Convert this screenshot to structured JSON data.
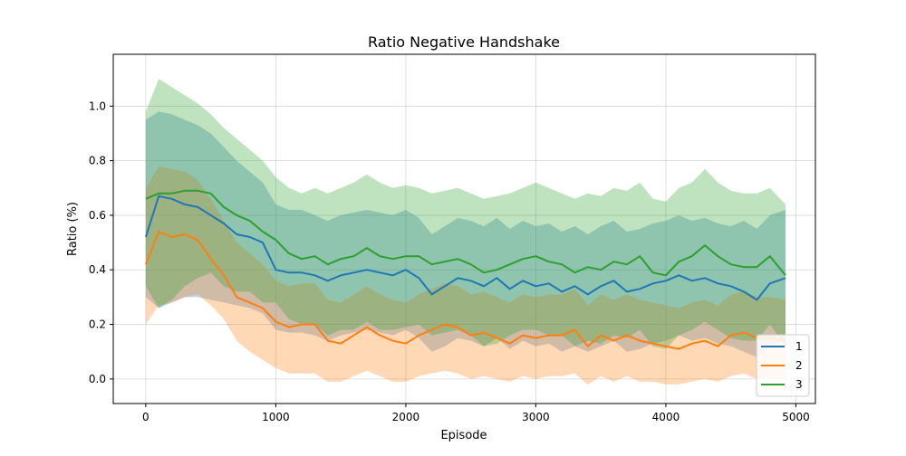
{
  "chart_data": {
    "type": "line",
    "title": "Ratio Negative Handshake",
    "xlabel": "Episode",
    "ylabel": "Ratio (%)",
    "xlim": [
      -250,
      5150
    ],
    "ylim": [
      -0.09,
      1.19
    ],
    "xticks": [
      0,
      1000,
      2000,
      3000,
      4000,
      5000
    ],
    "yticks": [
      0.0,
      0.2,
      0.4,
      0.6,
      0.8,
      1.0
    ],
    "xtick_labels": [
      "0",
      "1000",
      "2000",
      "3000",
      "4000",
      "5000"
    ],
    "ytick_labels": [
      "0.0",
      "0.2",
      "0.4",
      "0.6",
      "0.8",
      "1.0"
    ],
    "grid": true,
    "legend_position": "bottom-right",
    "x": [
      0,
      100,
      200,
      300,
      400,
      500,
      600,
      700,
      800,
      900,
      1000,
      1100,
      1200,
      1300,
      1400,
      1500,
      1600,
      1700,
      1800,
      1900,
      2000,
      2100,
      2200,
      2300,
      2400,
      2500,
      2600,
      2700,
      2800,
      2900,
      3000,
      3100,
      3200,
      3300,
      3400,
      3500,
      3600,
      3700,
      3800,
      3900,
      4000,
      4100,
      4200,
      4300,
      4400,
      4500,
      4600,
      4700,
      4800,
      4920
    ],
    "series": [
      {
        "name": "1",
        "color": "#1f77b4",
        "values": [
          0.52,
          0.67,
          0.66,
          0.64,
          0.63,
          0.6,
          0.57,
          0.53,
          0.52,
          0.5,
          0.4,
          0.39,
          0.39,
          0.38,
          0.36,
          0.38,
          0.39,
          0.4,
          0.39,
          0.38,
          0.4,
          0.37,
          0.31,
          0.34,
          0.37,
          0.36,
          0.34,
          0.37,
          0.33,
          0.36,
          0.34,
          0.35,
          0.32,
          0.34,
          0.31,
          0.34,
          0.36,
          0.32,
          0.33,
          0.35,
          0.36,
          0.38,
          0.36,
          0.37,
          0.35,
          0.34,
          0.32,
          0.29,
          0.35,
          0.37
        ],
        "band_upper": [
          0.95,
          0.98,
          0.97,
          0.95,
          0.93,
          0.9,
          0.85,
          0.8,
          0.76,
          0.72,
          0.64,
          0.62,
          0.62,
          0.6,
          0.58,
          0.6,
          0.61,
          0.62,
          0.61,
          0.6,
          0.62,
          0.59,
          0.53,
          0.56,
          0.59,
          0.58,
          0.56,
          0.59,
          0.55,
          0.58,
          0.56,
          0.57,
          0.54,
          0.56,
          0.53,
          0.56,
          0.58,
          0.54,
          0.55,
          0.57,
          0.58,
          0.6,
          0.58,
          0.59,
          0.57,
          0.56,
          0.58,
          0.55,
          0.6,
          0.62
        ],
        "band_lower": [
          0.3,
          0.26,
          0.28,
          0.3,
          0.3,
          0.29,
          0.28,
          0.27,
          0.26,
          0.24,
          0.18,
          0.17,
          0.17,
          0.16,
          0.14,
          0.16,
          0.17,
          0.18,
          0.17,
          0.16,
          0.18,
          0.15,
          0.1,
          0.12,
          0.15,
          0.14,
          0.12,
          0.15,
          0.11,
          0.14,
          0.12,
          0.13,
          0.1,
          0.12,
          0.1,
          0.12,
          0.14,
          0.1,
          0.11,
          0.13,
          0.14,
          0.16,
          0.14,
          0.15,
          0.13,
          0.12,
          0.1,
          0.08,
          0.12,
          0.14
        ]
      },
      {
        "name": "2",
        "color": "#ff7f0e",
        "values": [
          0.42,
          0.54,
          0.52,
          0.53,
          0.51,
          0.44,
          0.38,
          0.3,
          0.28,
          0.26,
          0.21,
          0.19,
          0.2,
          0.2,
          0.14,
          0.13,
          0.16,
          0.19,
          0.16,
          0.14,
          0.13,
          0.16,
          0.18,
          0.2,
          0.19,
          0.16,
          0.17,
          0.15,
          0.13,
          0.16,
          0.15,
          0.16,
          0.16,
          0.18,
          0.12,
          0.16,
          0.14,
          0.16,
          0.14,
          0.13,
          0.12,
          0.11,
          0.13,
          0.14,
          0.12,
          0.16,
          0.17,
          0.15,
          0.15,
          0.14
        ],
        "band_upper": [
          0.7,
          0.78,
          0.77,
          0.76,
          0.73,
          0.66,
          0.58,
          0.5,
          0.46,
          0.42,
          0.36,
          0.34,
          0.35,
          0.35,
          0.29,
          0.28,
          0.31,
          0.34,
          0.31,
          0.29,
          0.28,
          0.31,
          0.33,
          0.35,
          0.34,
          0.31,
          0.32,
          0.3,
          0.28,
          0.31,
          0.3,
          0.31,
          0.31,
          0.33,
          0.27,
          0.31,
          0.29,
          0.31,
          0.29,
          0.28,
          0.27,
          0.26,
          0.28,
          0.29,
          0.27,
          0.31,
          0.32,
          0.3,
          0.3,
          0.29
        ],
        "band_lower": [
          0.2,
          0.27,
          0.28,
          0.3,
          0.31,
          0.27,
          0.22,
          0.14,
          0.1,
          0.07,
          0.04,
          0.02,
          0.02,
          0.02,
          -0.01,
          -0.01,
          0.01,
          0.03,
          0.01,
          -0.01,
          -0.01,
          0.01,
          0.02,
          0.03,
          0.02,
          0.0,
          0.01,
          0.0,
          -0.01,
          0.01,
          0.0,
          0.01,
          0.01,
          0.02,
          -0.02,
          0.01,
          -0.01,
          0.01,
          -0.01,
          -0.01,
          -0.02,
          -0.02,
          -0.01,
          0.0,
          -0.01,
          0.01,
          0.02,
          0.0,
          0.0,
          0.0
        ]
      },
      {
        "name": "3",
        "color": "#2ca02c",
        "values": [
          0.66,
          0.68,
          0.68,
          0.69,
          0.69,
          0.68,
          0.63,
          0.6,
          0.58,
          0.54,
          0.51,
          0.46,
          0.44,
          0.45,
          0.42,
          0.44,
          0.45,
          0.48,
          0.45,
          0.44,
          0.45,
          0.45,
          0.42,
          0.43,
          0.44,
          0.42,
          0.39,
          0.4,
          0.42,
          0.44,
          0.45,
          0.43,
          0.42,
          0.39,
          0.41,
          0.4,
          0.43,
          0.42,
          0.45,
          0.39,
          0.38,
          0.43,
          0.45,
          0.49,
          0.45,
          0.42,
          0.41,
          0.41,
          0.45,
          0.38
        ],
        "band_upper": [
          0.98,
          1.1,
          1.07,
          1.04,
          1.01,
          0.97,
          0.92,
          0.88,
          0.84,
          0.8,
          0.74,
          0.7,
          0.68,
          0.7,
          0.68,
          0.7,
          0.72,
          0.75,
          0.72,
          0.7,
          0.71,
          0.7,
          0.68,
          0.69,
          0.7,
          0.68,
          0.66,
          0.67,
          0.68,
          0.7,
          0.72,
          0.7,
          0.68,
          0.66,
          0.68,
          0.67,
          0.7,
          0.69,
          0.72,
          0.66,
          0.65,
          0.7,
          0.72,
          0.77,
          0.72,
          0.69,
          0.68,
          0.68,
          0.7,
          0.64
        ],
        "band_lower": [
          0.34,
          0.26,
          0.29,
          0.34,
          0.37,
          0.39,
          0.34,
          0.32,
          0.32,
          0.28,
          0.28,
          0.22,
          0.2,
          0.2,
          0.16,
          0.18,
          0.18,
          0.21,
          0.18,
          0.18,
          0.19,
          0.2,
          0.16,
          0.17,
          0.18,
          0.16,
          0.12,
          0.13,
          0.16,
          0.18,
          0.18,
          0.16,
          0.16,
          0.12,
          0.14,
          0.13,
          0.16,
          0.15,
          0.18,
          0.12,
          0.11,
          0.16,
          0.18,
          0.21,
          0.18,
          0.15,
          0.14,
          0.14,
          0.2,
          0.12
        ]
      }
    ]
  }
}
